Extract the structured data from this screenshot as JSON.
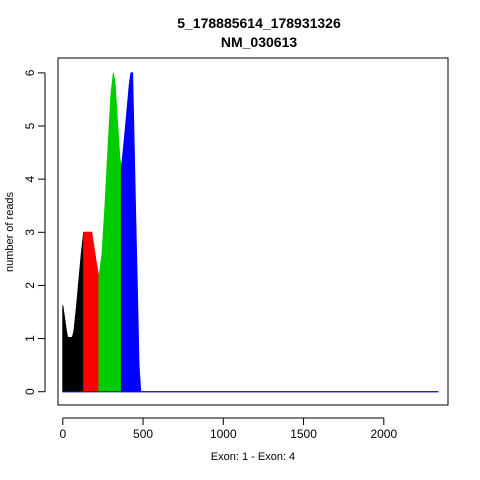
{
  "chart_data": {
    "type": "area",
    "title": "5_178885614_178931326",
    "subtitle": "NM_030613",
    "xlabel": "Exon: 1 - Exon: 4",
    "ylabel": "number of reads",
    "xlim": [
      -30,
      2400
    ],
    "ylim": [
      -0.25,
      6.28
    ],
    "xticks": [
      0,
      500,
      1000,
      1500,
      2000,
      2500
    ],
    "xtick_labels": [
      "0",
      "500",
      "1000",
      "1500",
      "2000",
      ""
    ],
    "yticks": [
      0,
      1,
      2,
      3,
      4,
      5,
      6
    ],
    "grid": false,
    "series": [
      {
        "color": "#000000",
        "points": [
          [
            0,
            0
          ],
          [
            0,
            1.62
          ],
          [
            8,
            1.45
          ],
          [
            15,
            1.3
          ],
          [
            22,
            1.15
          ],
          [
            30,
            1.02
          ],
          [
            60,
            1.02
          ],
          [
            70,
            1.15
          ],
          [
            85,
            1.6
          ],
          [
            100,
            2.1
          ],
          [
            115,
            2.6
          ],
          [
            130,
            3.0
          ],
          [
            130,
            0
          ]
        ]
      },
      {
        "color": "#ff0000",
        "points": [
          [
            130,
            0
          ],
          [
            130,
            3.0
          ],
          [
            180,
            3.0
          ],
          [
            195,
            2.7
          ],
          [
            210,
            2.4
          ],
          [
            225,
            2.15
          ],
          [
            225,
            0
          ]
        ]
      },
      {
        "color": "#00cd00",
        "points": [
          [
            225,
            0
          ],
          [
            225,
            2.15
          ],
          [
            245,
            2.6
          ],
          [
            265,
            3.6
          ],
          [
            285,
            4.8
          ],
          [
            300,
            5.6
          ],
          [
            315,
            6.0
          ],
          [
            325,
            5.8
          ],
          [
            340,
            5.1
          ],
          [
            355,
            4.4
          ],
          [
            365,
            4.2
          ],
          [
            365,
            0
          ]
        ]
      },
      {
        "color": "#0000ff",
        "points": [
          [
            365,
            0
          ],
          [
            365,
            4.2
          ],
          [
            385,
            4.8
          ],
          [
            400,
            5.3
          ],
          [
            415,
            5.8
          ],
          [
            425,
            6.0
          ],
          [
            435,
            6.0
          ],
          [
            445,
            4.6
          ],
          [
            455,
            3.2
          ],
          [
            465,
            1.9
          ],
          [
            475,
            0.5
          ],
          [
            485,
            0
          ],
          [
            2340,
            0
          ],
          [
            2340,
            0
          ]
        ]
      }
    ]
  }
}
